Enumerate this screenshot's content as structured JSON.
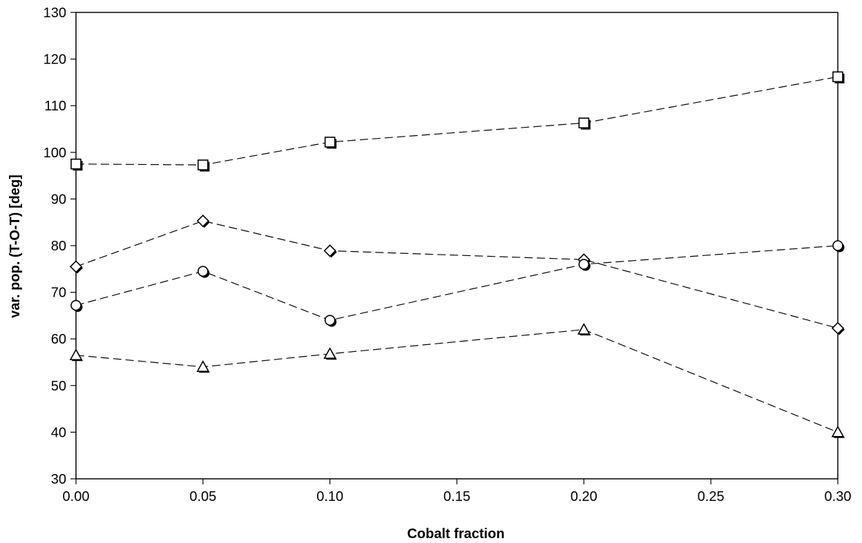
{
  "chart_data": {
    "type": "line",
    "title": "",
    "xlabel": "Cobalt fraction",
    "ylabel": "var. pop. (T-O-T) [deg]",
    "xlim": [
      0.0,
      0.3
    ],
    "ylim": [
      30,
      130
    ],
    "x_ticks": [
      "0.00",
      "0.05",
      "0.10",
      "0.15",
      "0.20",
      "0.25",
      "0.30"
    ],
    "y_ticks": [
      "30",
      "40",
      "50",
      "60",
      "70",
      "80",
      "90",
      "100",
      "110",
      "120",
      "130"
    ],
    "grid": false,
    "legend": "none",
    "line_style": "dashed",
    "x": [
      0.0,
      0.05,
      0.1,
      0.2,
      0.3
    ],
    "series": [
      {
        "marker": "square",
        "values": [
          97.5,
          97.3,
          102.2,
          106.3,
          116.2
        ]
      },
      {
        "marker": "diamond",
        "values": [
          75.5,
          85.3,
          78.9,
          77.0,
          62.3
        ]
      },
      {
        "marker": "circle",
        "values": [
          67.2,
          74.5,
          64.0,
          76.0,
          80.0
        ]
      },
      {
        "marker": "triangle",
        "values": [
          56.5,
          54.0,
          56.8,
          62.0,
          40.0
        ]
      }
    ]
  }
}
